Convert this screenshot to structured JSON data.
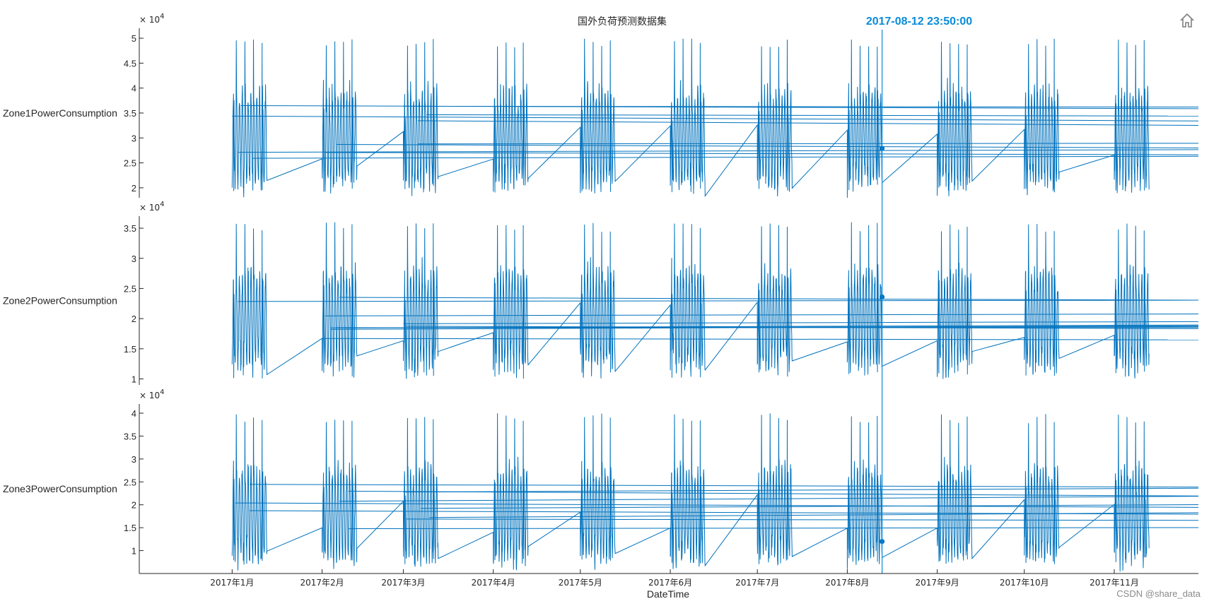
{
  "figure": {
    "title": "国外负荷预测数据集",
    "cursor_label": "2017-08-12 23:50:00",
    "watermark": "CSDN @share_data",
    "home_icon": "home-icon"
  },
  "colors": {
    "line": "#0072bd",
    "cursor": "#0a8cd9",
    "axis": "#262626"
  },
  "chart_data": {
    "type": "line",
    "xlabel": "DateTime",
    "x_ticks": [
      "2017年1月",
      "2017年2月",
      "2017年3月",
      "2017年4月",
      "2017年5月",
      "2017年6月",
      "2017年7月",
      "2017年8月",
      "2017年9月",
      "2017年10月",
      "2017年11月"
    ],
    "x_range": [
      "2016-11-30",
      "2017-11-30"
    ],
    "cursor_date": "2017-08-12 23:50:00",
    "exponent_label": "× 10^4",
    "note_x_values_within_month": "data recorded on days 1–12 of each month; each month appears as a dense block of daily oscillations",
    "panels": [
      {
        "ylabel": "Zone1PowerConsumption",
        "ylim": [
          18000,
          52000
        ],
        "yticks": [
          20000,
          25000,
          30000,
          35000,
          40000,
          45000,
          50000
        ],
        "ytick_labels": [
          "2",
          "2.5",
          "3",
          "3.5",
          "4",
          "4.5",
          "5"
        ],
        "exponent": "4",
        "base": 30000,
        "peak": 50000,
        "trough": 19000,
        "cursor_value": 27900
      },
      {
        "ylabel": "Zone2PowerConsumption",
        "ylim": [
          9000,
          37000
        ],
        "yticks": [
          10000,
          15000,
          20000,
          25000,
          30000,
          35000
        ],
        "ytick_labels": [
          "1",
          "1.5",
          "2",
          "2.5",
          "3",
          "3.5"
        ],
        "exponent": "4",
        "base": 20000,
        "peak": 36000,
        "trough": 10000,
        "cursor_value": 23600
      },
      {
        "ylabel": "Zone3PowerConsumption",
        "ylim": [
          5000,
          42000
        ],
        "yticks": [
          10000,
          15000,
          20000,
          25000,
          30000,
          35000,
          40000
        ],
        "ytick_labels": [
          "1",
          "1.5",
          "2",
          "2.5",
          "3",
          "3.5",
          "4"
        ],
        "exponent": "4",
        "base": 18000,
        "peak": 40000,
        "trough": 7000,
        "cursor_value": 12000
      }
    ]
  }
}
